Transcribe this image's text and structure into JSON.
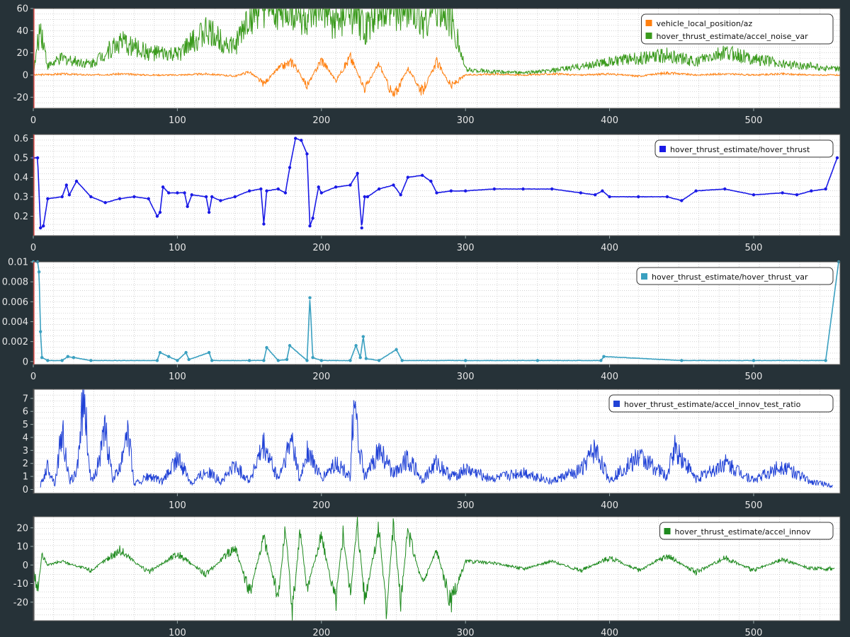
{
  "chart_data": [
    {
      "type": "line",
      "xlim": [
        0,
        560
      ],
      "ylim": [
        -30,
        60
      ],
      "x_ticks": [
        0,
        100,
        200,
        300,
        400,
        500
      ],
      "y_ticks": [
        -20,
        0,
        20,
        40,
        60
      ],
      "grid": true,
      "legend": "top-right",
      "series": [
        {
          "name": "vehicle_local_position/az",
          "color": "#ff7f0e",
          "x": [
            0,
            20,
            40,
            60,
            80,
            100,
            120,
            140,
            150,
            160,
            170,
            180,
            190,
            200,
            210,
            220,
            230,
            240,
            250,
            260,
            270,
            280,
            290,
            300,
            320,
            340,
            360,
            380,
            400,
            420,
            440,
            460,
            480,
            500,
            520,
            540,
            560
          ],
          "values": [
            0,
            1,
            0,
            1,
            0,
            0,
            1,
            -1,
            3,
            -8,
            6,
            12,
            -10,
            14,
            -5,
            16,
            -12,
            10,
            -20,
            6,
            -15,
            12,
            -10,
            0,
            1,
            0,
            1,
            0,
            1,
            -1,
            2,
            0,
            1,
            0,
            1,
            0,
            0
          ]
        },
        {
          "name": "hover_thrust_estimate/accel_noise_var",
          "color": "#3a9a1c",
          "x": [
            0,
            5,
            10,
            20,
            40,
            60,
            80,
            100,
            120,
            140,
            150,
            160,
            170,
            180,
            190,
            200,
            210,
            220,
            230,
            240,
            250,
            260,
            270,
            280,
            290,
            300,
            320,
            340,
            360,
            380,
            400,
            420,
            440,
            460,
            480,
            500,
            520,
            540,
            560
          ],
          "values": [
            0,
            45,
            8,
            15,
            10,
            30,
            20,
            18,
            40,
            25,
            55,
            60,
            58,
            60,
            50,
            60,
            45,
            60,
            40,
            60,
            58,
            60,
            50,
            60,
            52,
            5,
            3,
            2,
            4,
            8,
            12,
            15,
            18,
            12,
            20,
            15,
            10,
            8,
            5
          ]
        }
      ]
    },
    {
      "type": "scatter",
      "xlim": [
        0,
        560
      ],
      "ylim": [
        0.1,
        0.62
      ],
      "x_ticks": [
        0,
        100,
        200,
        300,
        400,
        500
      ],
      "y_ticks": [
        0.2,
        0.3,
        0.4,
        0.5,
        0.6
      ],
      "grid": true,
      "legend": "top-right",
      "series": [
        {
          "name": "hover_thrust_estimate/hover_thrust",
          "color": "#1a1ae6",
          "x": [
            0,
            3,
            5,
            7,
            10,
            20,
            23,
            25,
            30,
            40,
            50,
            60,
            70,
            80,
            86,
            88,
            90,
            94,
            100,
            105,
            107,
            110,
            120,
            122,
            124,
            130,
            140,
            150,
            158,
            160,
            162,
            170,
            175,
            178,
            182,
            186,
            190,
            192,
            194,
            198,
            200,
            210,
            220,
            225,
            228,
            230,
            232,
            240,
            250,
            255,
            260,
            270,
            276,
            280,
            290,
            300,
            320,
            340,
            360,
            380,
            390,
            395,
            400,
            420,
            440,
            450,
            460,
            480,
            500,
            520,
            530,
            540,
            550,
            558
          ],
          "values": [
            0.5,
            0.5,
            0.14,
            0.15,
            0.29,
            0.3,
            0.36,
            0.31,
            0.38,
            0.3,
            0.27,
            0.29,
            0.3,
            0.29,
            0.2,
            0.22,
            0.35,
            0.32,
            0.32,
            0.32,
            0.25,
            0.31,
            0.3,
            0.22,
            0.3,
            0.28,
            0.3,
            0.33,
            0.34,
            0.16,
            0.33,
            0.34,
            0.32,
            0.45,
            0.6,
            0.59,
            0.52,
            0.15,
            0.19,
            0.35,
            0.32,
            0.35,
            0.36,
            0.42,
            0.14,
            0.3,
            0.3,
            0.34,
            0.36,
            0.31,
            0.4,
            0.41,
            0.38,
            0.32,
            0.33,
            0.33,
            0.34,
            0.34,
            0.34,
            0.32,
            0.31,
            0.33,
            0.3,
            0.3,
            0.3,
            0.28,
            0.33,
            0.34,
            0.31,
            0.32,
            0.31,
            0.33,
            0.34,
            0.5
          ]
        }
      ]
    },
    {
      "type": "scatter",
      "xlim": [
        0,
        560
      ],
      "ylim": [
        -0.0003,
        0.01
      ],
      "x_ticks": [
        0,
        100,
        200,
        300,
        400,
        500
      ],
      "y_ticks": [
        0,
        0.002,
        0.004,
        0.006,
        0.008,
        0.01
      ],
      "y_tick_labels": [
        "0",
        "0.002",
        "0.004",
        "0.006",
        "0.008",
        "0.01"
      ],
      "grid": true,
      "legend": "top-right",
      "series": [
        {
          "name": "hover_thrust_estimate/hover_thrust_var",
          "color": "#3aa0c0",
          "x": [
            0,
            3,
            4,
            5,
            6,
            10,
            20,
            24,
            28,
            40,
            86,
            88,
            94,
            100,
            106,
            108,
            122,
            124,
            150,
            160,
            162,
            170,
            176,
            178,
            190,
            192,
            194,
            200,
            220,
            224,
            227,
            229,
            231,
            240,
            252,
            256,
            300,
            350,
            394,
            396,
            450,
            500,
            550,
            559
          ],
          "values": [
            0.01,
            0.01,
            0.009,
            0.003,
            0.0004,
            0.0001,
            0.0001,
            0.0005,
            0.0004,
            0.0001,
            0.0001,
            0.0009,
            0.0005,
            0.0001,
            0.0009,
            0.0002,
            0.0009,
            0.0001,
            0.0001,
            0.0001,
            0.0014,
            0.0001,
            0.0002,
            0.0016,
            0.0001,
            0.0064,
            0.0004,
            0.0001,
            0.0001,
            0.0016,
            0.0004,
            0.0025,
            0.0003,
            0.0001,
            0.0012,
            0.0001,
            0.0001,
            0.0001,
            0.0001,
            0.0005,
            0.0001,
            0.0001,
            0.0001,
            0.01
          ]
        }
      ]
    },
    {
      "type": "line",
      "xlim": [
        0,
        560
      ],
      "ylim": [
        -0.3,
        7.7
      ],
      "x_ticks": [
        100,
        200,
        300,
        400,
        500
      ],
      "y_ticks": [
        0,
        1,
        2,
        3,
        4,
        5,
        6,
        7
      ],
      "grid": true,
      "legend": "top-right",
      "series": [
        {
          "name": "hover_thrust_estimate/accel_innov_test_ratio",
          "color": "#2142d6",
          "x": [
            5,
            10,
            15,
            20,
            25,
            30,
            35,
            40,
            45,
            50,
            55,
            60,
            65,
            70,
            80,
            90,
            100,
            110,
            120,
            130,
            140,
            150,
            160,
            170,
            180,
            185,
            190,
            200,
            210,
            220,
            222,
            230,
            240,
            250,
            260,
            270,
            280,
            290,
            300,
            320,
            340,
            360,
            380,
            390,
            400,
            420,
            440,
            445,
            460,
            480,
            500,
            520,
            540,
            555
          ],
          "values": [
            0.3,
            1.8,
            0.4,
            4.5,
            0.6,
            1.2,
            7.3,
            0.5,
            2.0,
            4.5,
            0.8,
            1.5,
            5.2,
            0.4,
            1.0,
            0.6,
            2.4,
            0.5,
            1.5,
            0.6,
            1.8,
            0.7,
            3.3,
            0.8,
            4.0,
            0.6,
            3.0,
            0.8,
            2.0,
            1.0,
            6.3,
            0.8,
            3.0,
            1.2,
            2.5,
            0.7,
            2.0,
            1.0,
            1.5,
            0.8,
            1.3,
            0.6,
            1.5,
            3.0,
            0.7,
            2.5,
            1.0,
            3.2,
            0.8,
            2.0,
            0.7,
            1.8,
            0.6,
            0.3
          ]
        }
      ]
    },
    {
      "type": "line",
      "xlim": [
        0,
        560
      ],
      "ylim": [
        -30,
        26
      ],
      "x_ticks": [
        100,
        200,
        300,
        400,
        500
      ],
      "y_ticks": [
        -20,
        -10,
        0,
        10,
        20
      ],
      "grid": true,
      "legend": "top-right",
      "series": [
        {
          "name": "hover_thrust_estimate/accel_innov",
          "color": "#1e8a1e",
          "x": [
            0,
            3,
            6,
            10,
            20,
            40,
            60,
            80,
            100,
            120,
            140,
            150,
            160,
            170,
            175,
            180,
            185,
            190,
            200,
            210,
            215,
            220,
            225,
            230,
            240,
            245,
            250,
            255,
            260,
            270,
            280,
            290,
            300,
            320,
            340,
            360,
            380,
            400,
            420,
            440,
            460,
            480,
            500,
            520,
            540,
            556
          ],
          "values": [
            -2,
            -14,
            5,
            0,
            2,
            -3,
            8,
            -4,
            6,
            -5,
            10,
            -15,
            15,
            -18,
            20,
            -25,
            18,
            -12,
            15,
            -20,
            18,
            -15,
            22,
            -18,
            20,
            -24,
            22,
            -20,
            18,
            -10,
            8,
            -22,
            2,
            1,
            -2,
            2,
            -3,
            4,
            -3,
            5,
            -4,
            4,
            -3,
            3,
            -2,
            -2
          ]
        }
      ]
    }
  ]
}
